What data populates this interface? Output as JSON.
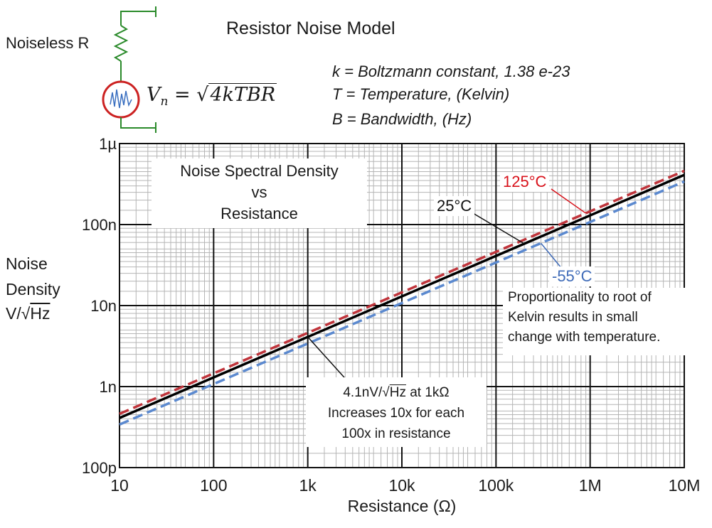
{
  "title": "Resistor Noise Model",
  "schematic": {
    "resistor_label": "Noiseless  R"
  },
  "formula": {
    "lhs_var": "V",
    "lhs_sub": "n",
    "equals": "=",
    "radical": "√",
    "radicand": "4kTBR"
  },
  "definitions": [
    "k = Boltzmann constant,  1.38 e-23",
    "T = Temperature, (Kelvin)",
    "B = Bandwidth, (Hz)"
  ],
  "y_axis_label": {
    "line1": "Noise",
    "line2": "Density",
    "unit_prefix": "V/√",
    "unit_over": "Hz"
  },
  "x_axis_label": "Resistance  (Ω)",
  "chart_title_box": {
    "line1": "Noise Spectral Density",
    "line2": "vs",
    "line3": "Resistance"
  },
  "annotation_1k": {
    "line1_prefix": "4.1nV/√",
    "line1_over": "Hz",
    "line1_suffix": " at 1kΩ",
    "line2": "Increases 10x for each",
    "line3": "100x in resistance"
  },
  "annotation_prop": {
    "line1": "Proportionality to root of",
    "line2": "Kelvin results in small",
    "line3": "change with temperature."
  },
  "series_labels": {
    "hot": "125°C",
    "room": "25°C",
    "cold": "-55°C"
  },
  "colors": {
    "hot": "#c0343b",
    "room": "#000000",
    "cold": "#5b89cf",
    "hot_label": "#d8121b",
    "cold_label": "#3f6bb8",
    "grid_minor": "#b5b5b5",
    "grid_major": "#111111",
    "schematic_wire": "#2a8a2a",
    "source_circle": "#cc2222",
    "source_wave": "#3a6fc0"
  },
  "chart_data": {
    "type": "line",
    "title": "Noise Spectral Density vs Resistance",
    "xlabel": "Resistance  (Ω)",
    "ylabel": "Noise Density V/√Hz",
    "xscale": "log",
    "yscale": "log",
    "xlim": [
      10,
      10000000
    ],
    "ylim": [
      1e-10,
      1e-06
    ],
    "x_ticks": [
      10,
      100,
      1000,
      10000,
      100000,
      1000000,
      10000000
    ],
    "x_tick_labels": [
      "10",
      "100",
      "1k",
      "10k",
      "100k",
      "1M",
      "10M"
    ],
    "y_ticks": [
      1e-10,
      1e-09,
      1e-08,
      1e-07,
      1e-06
    ],
    "y_tick_labels": [
      "100p",
      "1n",
      "10n",
      "100n",
      "1µ"
    ],
    "grid": true,
    "series": [
      {
        "name": "125°C",
        "key": "hot",
        "style": "dashed",
        "x": [
          10,
          10000000
        ],
        "values": [
          4.6e-10,
          4.6e-07
        ]
      },
      {
        "name": "25°C",
        "key": "room",
        "style": "solid",
        "x": [
          10,
          10000000
        ],
        "values": [
          4.1e-10,
          4.1e-07
        ]
      },
      {
        "name": "-55°C",
        "key": "cold",
        "style": "dashed",
        "x": [
          10,
          10000000
        ],
        "values": [
          3.4e-10,
          3.4e-07
        ]
      }
    ]
  }
}
